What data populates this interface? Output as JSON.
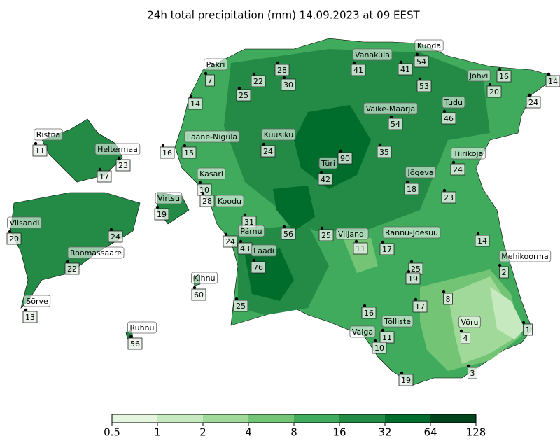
{
  "title": "24h total precipitation (mm) 14.09.2023 at 09 EEST",
  "stations": [
    {
      "name": "Pakri",
      "value": 7
    },
    {
      "name": "Kunda",
      "value": 54
    },
    {
      "name": "Vanaküla",
      "value": 41
    },
    {
      "name": "Jõhvi",
      "value": 20
    },
    {
      "name": "Ristna",
      "value": 11
    },
    {
      "name": "Lääne-Nigula",
      "value": 15
    },
    {
      "name": "Kuusiku",
      "value": 24
    },
    {
      "name": "Väike-Maarja",
      "value": 54
    },
    {
      "name": "Tudu",
      "value": 46
    },
    {
      "name": "Heltermaa",
      "value": 23
    },
    {
      "name": "Türi",
      "value": 42
    },
    {
      "name": "Jõgeva",
      "value": 18
    },
    {
      "name": "Tiirikoja",
      "value": 24
    },
    {
      "name": "Kasari",
      "value": 10
    },
    {
      "name": "Virtsu",
      "value": 19
    },
    {
      "name": "Koodu",
      "value": 31
    },
    {
      "name": "Vilsandi",
      "value": 20
    },
    {
      "name": "Pärnu",
      "value": 43
    },
    {
      "name": "Viljandi",
      "value": 11
    },
    {
      "name": "Rannu-Jõesuu",
      "value": 17
    },
    {
      "name": "Laadi",
      "value": 76
    },
    {
      "name": "Roomassaare",
      "value": 22
    },
    {
      "name": "Mehikoorma",
      "value": 2
    },
    {
      "name": "Kihnu",
      "value": 60
    },
    {
      "name": "Sõrve",
      "value": 13
    },
    {
      "name": "Tõlliste",
      "value": 11
    },
    {
      "name": "Võru",
      "value": 4
    },
    {
      "name": "Valga",
      "value": 10
    },
    {
      "name": "Ruhnu",
      "value": 56
    },
    {
      "value": 28
    },
    {
      "value": 30
    },
    {
      "value": 22
    },
    {
      "value": 25
    },
    {
      "value": 14
    },
    {
      "value": 41
    },
    {
      "value": 53
    },
    {
      "value": 16
    },
    {
      "value": 14
    },
    {
      "value": 24
    },
    {
      "value": 90
    },
    {
      "value": 35
    },
    {
      "value": 16
    },
    {
      "value": 17
    },
    {
      "value": 23
    },
    {
      "value": 24
    },
    {
      "value": 56
    },
    {
      "value": 25
    },
    {
      "value": 14
    },
    {
      "value": 25
    },
    {
      "value": 19
    },
    {
      "value": 8
    },
    {
      "value": 17
    },
    {
      "value": 16
    },
    {
      "value": 25
    },
    {
      "value": 1
    },
    {
      "value": 3
    },
    {
      "value": 19
    },
    {
      "value": 28
    },
    {
      "value": 24
    }
  ],
  "colorbar": {
    "ticks": [
      0.5,
      1,
      2,
      4,
      8,
      16,
      32,
      64,
      128
    ],
    "colors": [
      "#e5f5e0",
      "#c7e9c0",
      "#a1d99b",
      "#74c476",
      "#41ab5d",
      "#238b45",
      "#006d2c",
      "#00441b"
    ]
  }
}
